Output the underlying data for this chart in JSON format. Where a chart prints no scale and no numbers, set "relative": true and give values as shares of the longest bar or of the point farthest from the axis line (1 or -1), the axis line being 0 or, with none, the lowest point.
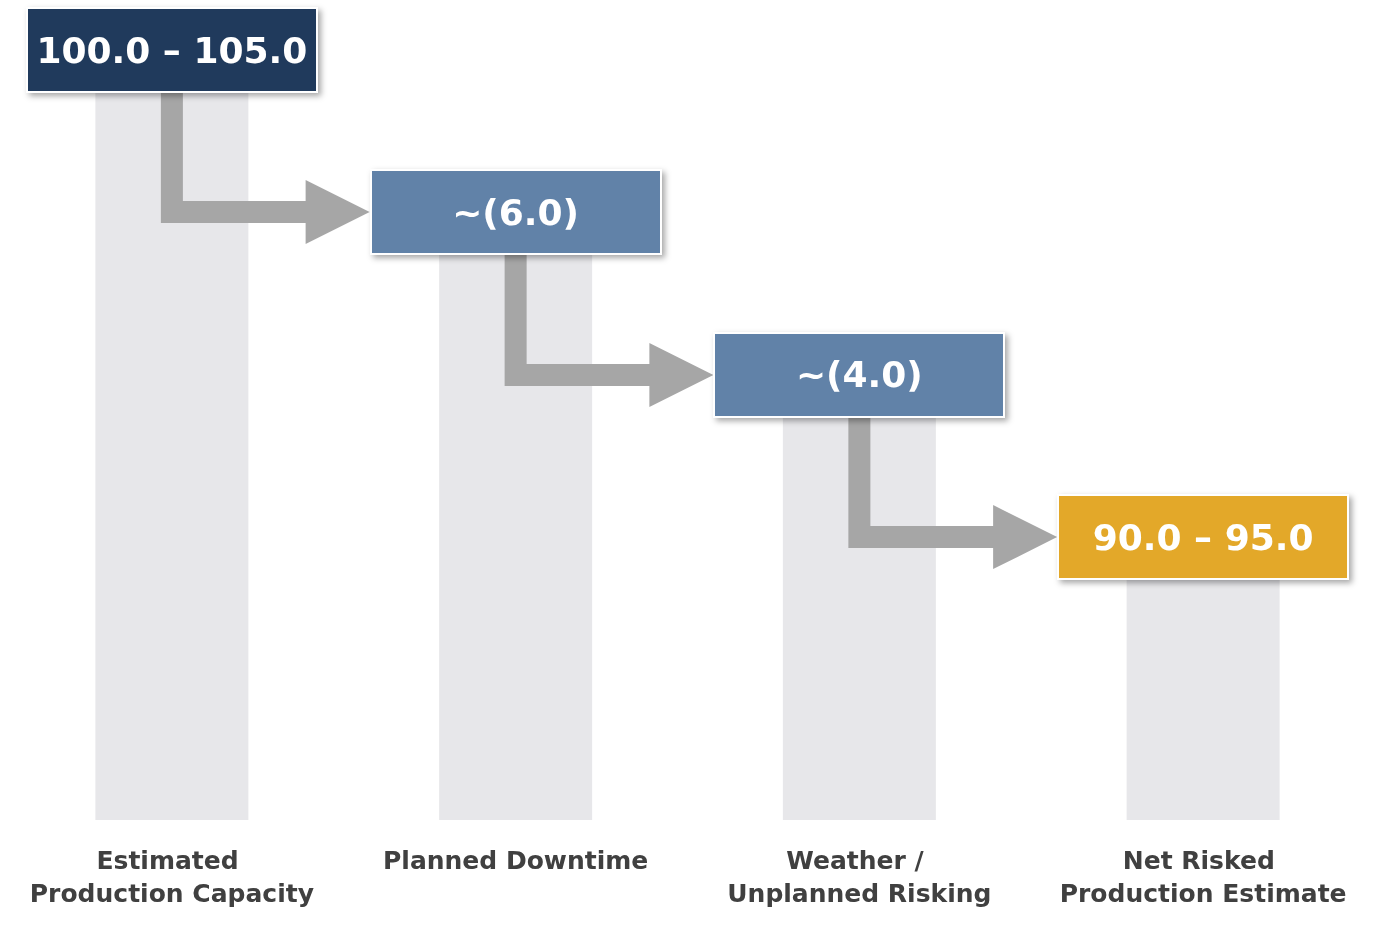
{
  "chart_data": {
    "type": "bar",
    "relative": true,
    "categories": [
      "Estimated Production Capacity",
      "Planned Downtime",
      "Weather / Unplanned Risking",
      "Net Risked Production Estimate"
    ],
    "values": [
      1,
      0.777,
      0.553,
      0.33
    ],
    "color": "#e7e7ea",
    "annotations": [
      {
        "text": "100.0 – 105.0",
        "x": "Estimated Production Capacity",
        "y": 1
      },
      {
        "text": "~(6.0)",
        "x": "Planned Downtime",
        "y": 0.777
      },
      {
        "text": "~(4.0)",
        "x": "Weather / Unplanned Risking",
        "y": 0.553
      },
      {
        "text": "90.0 – 95.0",
        "x": "Net Risked Production Estimate",
        "y": 0.33
      }
    ]
  }
}
